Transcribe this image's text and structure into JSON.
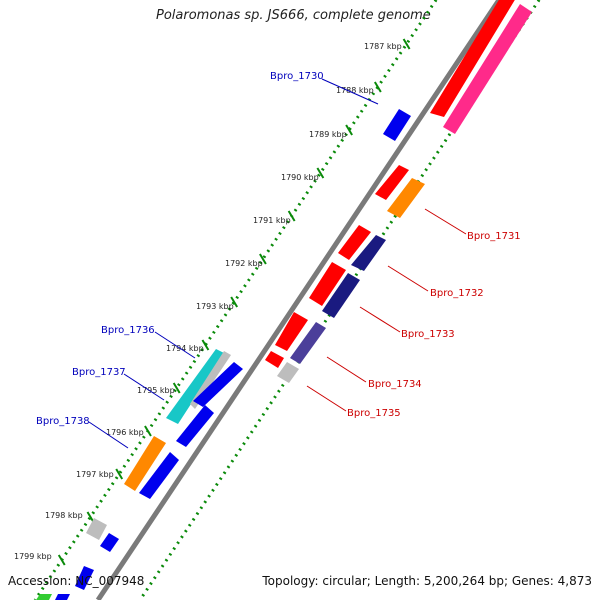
{
  "title": "Polaromonas sp. JS666, complete genome",
  "footer": {
    "accession": "Accession: NC_007948",
    "info": "Topology: circular; Length: 5,200,264 bp; Genes: 4,873"
  },
  "kbp_labels": [
    "1787 kbp",
    "1788 kbp",
    "1789 kbp",
    "1790 kbp",
    "1791 kbp",
    "1792 kbp",
    "1793 kbp",
    "1794 kbp",
    "1795 kbp",
    "1796 kbp",
    "1797 kbp",
    "1798 kbp",
    "1799 kbp"
  ],
  "gene_labels": [
    {
      "text": "Bpro_1730",
      "color": "#0000bb"
    },
    {
      "text": "Bpro_1731",
      "color": "#cc0000"
    },
    {
      "text": "Bpro_1732",
      "color": "#cc0000"
    },
    {
      "text": "Bpro_1733",
      "color": "#cc0000"
    },
    {
      "text": "Bpro_1734",
      "color": "#cc0000"
    },
    {
      "text": "Bpro_1735",
      "color": "#cc0000"
    },
    {
      "text": "Bpro_1736",
      "color": "#0000bb"
    },
    {
      "text": "Bpro_1737",
      "color": "#0000bb"
    },
    {
      "text": "Bpro_1738",
      "color": "#0000bb"
    }
  ],
  "colors": {
    "red": "#ff0000",
    "magenta": "#ff2a8a",
    "blue": "#0000ee",
    "navy": "#1a1a80",
    "slate": "#4b3f9a",
    "orange": "#ff8800",
    "cyan": "#18c7c7",
    "gray": "#bdbdbd",
    "green": "#33cc33",
    "backbone": "#7a7a7a",
    "scale": "#0a8a0a"
  }
}
